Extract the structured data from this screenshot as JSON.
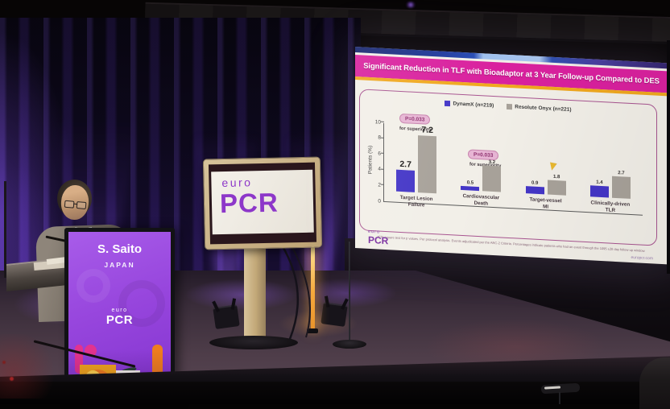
{
  "colors": {
    "banner_magenta": "#d9219e",
    "gold_strip": "#f0a81e",
    "dynamx_blue": "#4436c7",
    "onyx_gray": "#a8a29a",
    "pill_pink": "#e7b5d4",
    "logo_purple": "#7a2ea0",
    "monitor_purple": "#8d37c9",
    "podium_purple": "#9746dd"
  },
  "slide": {
    "title": "Significant Reduction in TLF with Bioadaptor at 3 Year Follow-up Compared to DES",
    "legend": [
      {
        "label": "DynamX (n=219)",
        "color": "#4436c7"
      },
      {
        "label": "Resolute Onyx (n=221)",
        "color": "#a8a29a"
      }
    ],
    "annotations": [
      {
        "p_value": "P=0.033",
        "note": "for superiority"
      },
      {
        "p_value": "P=0.033",
        "note": "for superiority"
      }
    ],
    "footnote": "*Chi-square test for p values. Per protocol analysis. Events adjudicated per the ARC-2 Criteria. Percentages indicate patients who had an event through the 1095 ±28 day follow-up window.",
    "logo_euro": "euro",
    "logo_pcr": "PCR",
    "website": "europcr.com"
  },
  "chart_data": {
    "type": "bar",
    "title": "Significant Reduction in TLF with Bioadaptor at 3 Year Follow-up Compared to DES",
    "ylabel": "Patients (%)",
    "xlabel": "",
    "ylim": [
      0,
      10
    ],
    "yticks": [
      0,
      2,
      4,
      6,
      8,
      10
    ],
    "grid": false,
    "legend_position": "top",
    "categories": [
      [
        "Target Lesion",
        "Failure"
      ],
      [
        "Cardiovascular",
        "Death"
      ],
      [
        "Target-vessel",
        "MI"
      ],
      [
        "Clinically-driven",
        "TLR"
      ]
    ],
    "series": [
      {
        "name": "DynamX (n=219)",
        "color": "#4436c7",
        "values": [
          2.7,
          0.5,
          0.9,
          1.4
        ]
      },
      {
        "name": "Resolute Onyx (n=221)",
        "color": "#a8a29a",
        "values": [
          7.2,
          3.2,
          1.8,
          2.7
        ]
      }
    ]
  },
  "monitor": {
    "logo_euro": "euro",
    "logo_pcr": "PCR"
  },
  "podium": {
    "speaker_name": "S. Saito",
    "speaker_country": "JAPAN",
    "logo_euro": "euro",
    "logo_pcr": "PCR"
  }
}
